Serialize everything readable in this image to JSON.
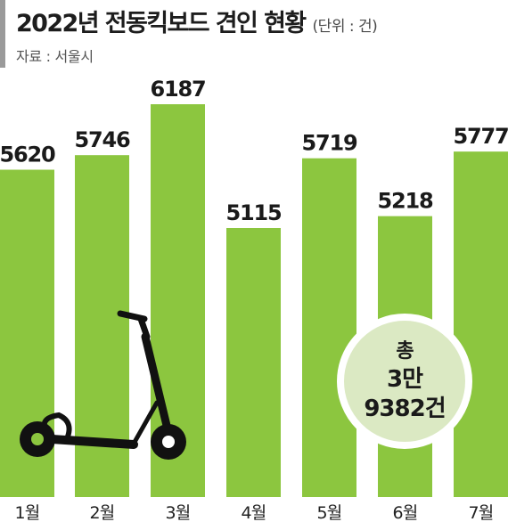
{
  "title": "2022년 전동킥보드 견인 현황",
  "unit": "(단위 : 건)",
  "source": "자료 : 서울시",
  "total": {
    "line1": "총",
    "line2": "3만",
    "line3": "9382건"
  },
  "chart_data": {
    "type": "bar",
    "title": "2022년 전동킥보드 견인 현황",
    "unit": "건",
    "categories": [
      "1월",
      "2월",
      "3월",
      "4월",
      "5월",
      "6월",
      "7월"
    ],
    "values": [
      5620,
      5746,
      6187,
      5115,
      5719,
      5218,
      5777
    ],
    "colors": {
      "bar": "#8cc63f",
      "total_circle": "#dbe9c3"
    },
    "icon": "scooter-icon"
  }
}
